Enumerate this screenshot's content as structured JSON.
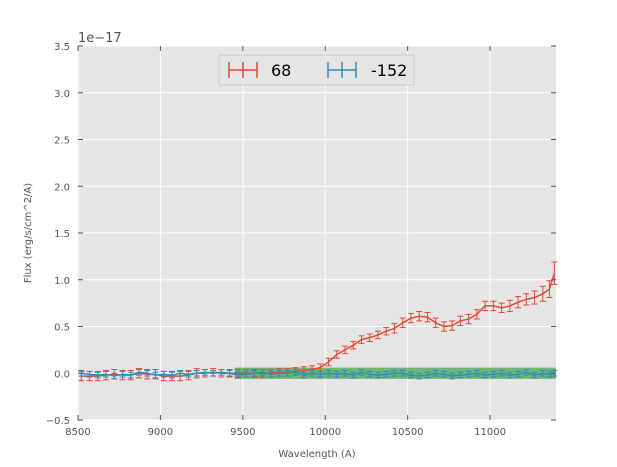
{
  "chart_data": {
    "type": "line",
    "title": "",
    "xlabel": "Wavelength (A)",
    "ylabel": "Flux (erg/s/cm^2/A)",
    "y_offset_label": "1e−17",
    "xlim": [
      8500,
      11400
    ],
    "ylim": [
      -0.5,
      3.5
    ],
    "x_ticks": [
      8500,
      9000,
      9500,
      10000,
      10500,
      11000
    ],
    "x_tick_labels": [
      "8500",
      "9000",
      "9500",
      "10000",
      "10500",
      "11000"
    ],
    "y_ticks": [
      -0.5,
      0.0,
      0.5,
      1.0,
      1.5,
      2.0,
      2.5,
      3.0,
      3.5
    ],
    "y_tick_labels": [
      "−0.5",
      "0.0",
      "0.5",
      "1.0",
      "1.5",
      "2.0",
      "2.5",
      "3.0",
      "3.5"
    ],
    "grid": true,
    "legend_position": "top-center",
    "highlight_band": {
      "x_range": [
        9450,
        11400
      ],
      "y_range": [
        -0.06,
        0.06
      ],
      "color": "#3aa345"
    },
    "series": [
      {
        "name": "68",
        "color": "#e24a33",
        "x": [
          8520,
          8570,
          8620,
          8670,
          8720,
          8770,
          8820,
          8870,
          8920,
          8970,
          9020,
          9070,
          9120,
          9170,
          9220,
          9270,
          9320,
          9370,
          9420,
          9470,
          9520,
          9570,
          9620,
          9670,
          9720,
          9770,
          9820,
          9870,
          9920,
          9970,
          10020,
          10070,
          10120,
          10170,
          10220,
          10270,
          10320,
          10370,
          10420,
          10470,
          10520,
          10570,
          10620,
          10670,
          10720,
          10770,
          10820,
          10870,
          10920,
          10970,
          11020,
          11070,
          11120,
          11170,
          11220,
          11270,
          11320,
          11360,
          11390
        ],
        "values": [
          -0.03,
          -0.03,
          -0.03,
          -0.02,
          -0.01,
          -0.02,
          -0.02,
          0.0,
          -0.01,
          -0.01,
          -0.03,
          -0.03,
          -0.03,
          -0.02,
          0.0,
          0.0,
          0.01,
          0.0,
          0.0,
          0.0,
          0.0,
          0.0,
          0.0,
          0.0,
          0.01,
          0.01,
          0.02,
          0.03,
          0.04,
          0.06,
          0.12,
          0.2,
          0.25,
          0.3,
          0.36,
          0.38,
          0.41,
          0.45,
          0.48,
          0.54,
          0.59,
          0.61,
          0.6,
          0.54,
          0.5,
          0.51,
          0.56,
          0.58,
          0.63,
          0.72,
          0.72,
          0.7,
          0.72,
          0.76,
          0.79,
          0.81,
          0.85,
          0.9,
          1.07
        ],
        "errors": [
          0.05,
          0.05,
          0.05,
          0.05,
          0.05,
          0.05,
          0.05,
          0.05,
          0.05,
          0.05,
          0.05,
          0.05,
          0.05,
          0.05,
          0.05,
          0.04,
          0.04,
          0.04,
          0.04,
          0.04,
          0.04,
          0.04,
          0.04,
          0.04,
          0.04,
          0.04,
          0.04,
          0.04,
          0.04,
          0.04,
          0.04,
          0.04,
          0.04,
          0.04,
          0.04,
          0.04,
          0.04,
          0.04,
          0.05,
          0.05,
          0.05,
          0.05,
          0.05,
          0.05,
          0.05,
          0.05,
          0.05,
          0.05,
          0.05,
          0.05,
          0.05,
          0.05,
          0.06,
          0.06,
          0.06,
          0.07,
          0.08,
          0.09,
          0.12
        ]
      },
      {
        "name": "-152",
        "color": "#348abd",
        "x": [
          8520,
          8570,
          8620,
          8670,
          8720,
          8770,
          8820,
          8870,
          8920,
          8970,
          9020,
          9070,
          9120,
          9170,
          9220,
          9270,
          9320,
          9370,
          9420,
          9470,
          9520,
          9570,
          9620,
          9670,
          9720,
          9770,
          9820,
          9870,
          9920,
          9970,
          10020,
          10070,
          10120,
          10170,
          10220,
          10270,
          10320,
          10370,
          10420,
          10470,
          10520,
          10570,
          10620,
          10670,
          10720,
          10770,
          10820,
          10870,
          10920,
          10970,
          11020,
          11070,
          11120,
          11170,
          11220,
          11270,
          11320,
          11360,
          11390
        ],
        "values": [
          0.0,
          -0.01,
          -0.02,
          -0.01,
          -0.03,
          -0.01,
          -0.02,
          0.01,
          0.0,
          -0.02,
          -0.01,
          -0.02,
          0.0,
          -0.01,
          0.0,
          0.01,
          0.0,
          0.01,
          0.0,
          -0.02,
          -0.01,
          0.0,
          0.01,
          -0.01,
          0.0,
          0.0,
          0.01,
          -0.02,
          0.0,
          -0.01,
          0.0,
          -0.01,
          0.0,
          -0.02,
          0.01,
          -0.01,
          -0.02,
          -0.01,
          0.0,
          0.0,
          -0.02,
          -0.03,
          -0.02,
          0.0,
          -0.01,
          -0.03,
          -0.02,
          -0.01,
          0.0,
          -0.02,
          -0.01,
          0.0,
          -0.02,
          -0.01,
          0.01,
          -0.02,
          0.0,
          -0.01,
          0.0
        ],
        "errors": [
          0.03,
          0.03,
          0.03,
          0.03,
          0.03,
          0.03,
          0.03,
          0.03,
          0.03,
          0.03,
          0.03,
          0.03,
          0.03,
          0.03,
          0.03,
          0.03,
          0.03,
          0.03,
          0.03,
          0.03,
          0.03,
          0.03,
          0.03,
          0.03,
          0.03,
          0.03,
          0.03,
          0.03,
          0.03,
          0.03,
          0.03,
          0.03,
          0.03,
          0.03,
          0.03,
          0.03,
          0.03,
          0.03,
          0.03,
          0.03,
          0.03,
          0.03,
          0.03,
          0.03,
          0.03,
          0.03,
          0.03,
          0.03,
          0.03,
          0.03,
          0.03,
          0.03,
          0.03,
          0.03,
          0.03,
          0.03,
          0.03,
          0.03,
          0.03
        ]
      }
    ]
  }
}
